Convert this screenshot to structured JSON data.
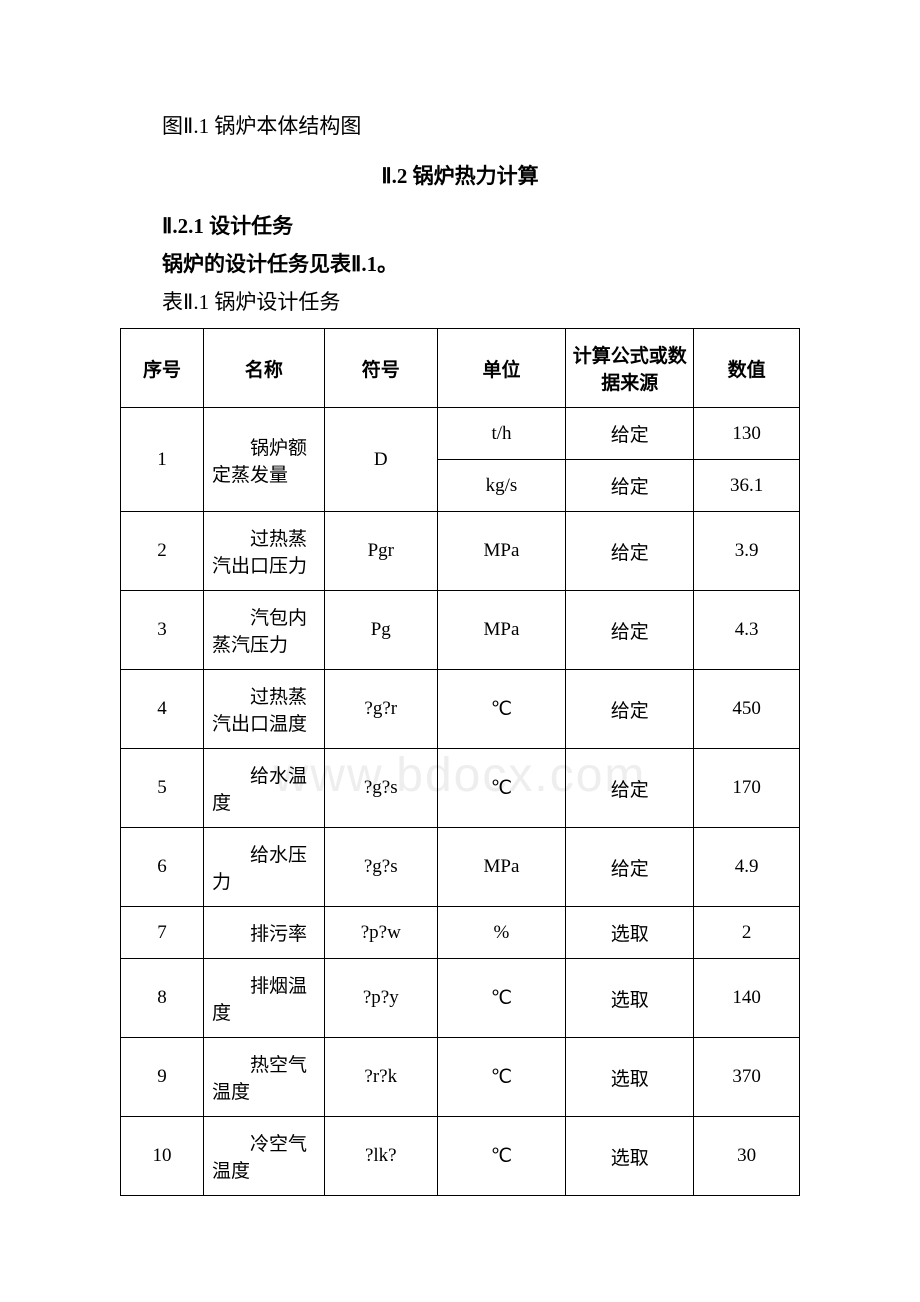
{
  "figure_caption": "图Ⅱ.1 锅炉本体结构图",
  "section_title": "Ⅱ.2 锅炉热力计算",
  "subsection_title": "Ⅱ.2.1 设计任务",
  "intro_text": "锅炉的设计任务见表Ⅱ.1。",
  "table_caption": "表Ⅱ.1 锅炉设计任务",
  "headers": {
    "seq": "序号",
    "name": "名称",
    "symbol": "符号",
    "unit": "单位",
    "source": "计算公式或数据来源",
    "value": "数值"
  },
  "rows": [
    {
      "seq": "1",
      "name": "锅炉额定蒸发量",
      "symbol": "D",
      "unit": "t/h",
      "source": "给定",
      "value": "130",
      "sub": {
        "unit": "kg/s",
        "source": "给定",
        "value": "36.1"
      }
    },
    {
      "seq": "2",
      "name": "过热蒸汽出口压力",
      "symbol": "Pgr",
      "unit": "MPa",
      "source": "给定",
      "value": "3.9"
    },
    {
      "seq": "3",
      "name": "汽包内蒸汽压力",
      "symbol": "Pg",
      "unit": "MPa",
      "source": "给定",
      "value": "4.3"
    },
    {
      "seq": "4",
      "name": "过热蒸汽出口温度",
      "symbol": "?g?r",
      "unit": "℃",
      "source": "给定",
      "value": "450"
    },
    {
      "seq": "5",
      "name": "给水温度",
      "symbol": "?g?s",
      "unit": "℃",
      "source": "给定",
      "value": "170"
    },
    {
      "seq": "6",
      "name": "给水压力",
      "symbol": "?g?s",
      "unit": "MPa",
      "source": "给定",
      "value": "4.9"
    },
    {
      "seq": "7",
      "name": "排污率",
      "symbol": "?p?w",
      "unit": "%",
      "source": "选取",
      "value": "2"
    },
    {
      "seq": "8",
      "name": "排烟温度",
      "symbol": "?p?y",
      "unit": "℃",
      "source": "选取",
      "value": "140"
    },
    {
      "seq": "9",
      "name": "热空气温度",
      "symbol": "?r?k",
      "unit": "℃",
      "source": "选取",
      "value": "370"
    },
    {
      "seq": "10",
      "name": "冷空气温度",
      "symbol": "?lk?",
      "unit": "℃",
      "source": "选取",
      "value": "30"
    }
  ],
  "watermark": "www.bdocx.com",
  "colors": {
    "text": "#000000",
    "background": "#ffffff",
    "border": "#000000",
    "watermark": "#eeeeee"
  },
  "typography": {
    "body_fontsize": 21,
    "table_fontsize": 19,
    "font_family": "SimSun"
  }
}
